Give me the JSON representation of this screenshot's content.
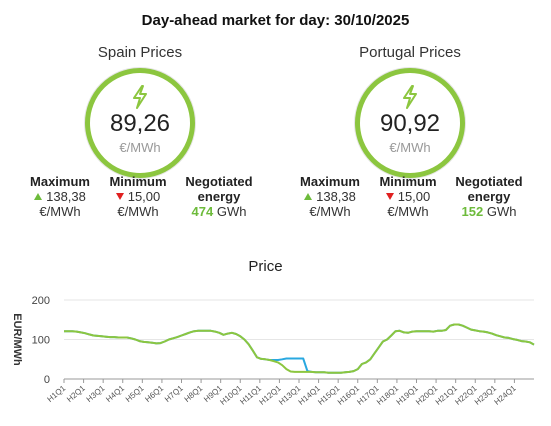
{
  "header": {
    "title": "Day-ahead market for day: 30/10/2025"
  },
  "panels": {
    "spain": {
      "name": "Spain Prices",
      "price": "89,26",
      "unit": "€/MWh",
      "max_label": "Maximum",
      "max_value": "138,38",
      "max_unit": "€/MWh",
      "min_label": "Minimum",
      "min_value": "15,00",
      "min_unit": "€/MWh",
      "energy_label_1": "Negotiated",
      "energy_label_2": "energy",
      "energy_value": "474",
      "energy_unit": "GWh"
    },
    "portugal": {
      "name": "Portugal Prices",
      "price": "90,92",
      "unit": "€/MWh",
      "max_label": "Maximum",
      "max_value": "138,38",
      "max_unit": "€/MWh",
      "min_label": "Minimum",
      "min_value": "15,00",
      "min_unit": "€/MWh",
      "energy_label_1": "Negotiated",
      "energy_label_2": "energy",
      "energy_value": "152",
      "energy_unit": "GWh"
    }
  },
  "colors": {
    "accent_green": "#8cc63f",
    "series_spain": "#8cc63f",
    "series_portugal": "#29a8e0",
    "down_red": "#e02020"
  },
  "icons": {
    "gauge_icon": "lightning-bolt-icon"
  },
  "chart_data": {
    "type": "line",
    "title": "Price",
    "ylabel": "EUR/MWh",
    "xlabel": "",
    "ylim": [
      0,
      200
    ],
    "yticks": [
      0,
      100,
      200
    ],
    "grid": true,
    "x_tick_labels": [
      "H1Q1",
      "H2Q1",
      "H3Q1",
      "H4Q1",
      "H5Q1",
      "H6Q1",
      "H7Q1",
      "H8Q1",
      "H9Q1",
      "H10Q1",
      "H11Q1",
      "H12Q1",
      "H13Q1",
      "H14Q1",
      "H15Q1",
      "H16Q1",
      "H17Q1",
      "H18Q1",
      "H19Q1",
      "H20Q1",
      "H21Q1",
      "H22Q1",
      "H23Q1",
      "H24Q1"
    ],
    "series": [
      {
        "values": [
          121,
          121,
          121,
          120,
          118,
          116,
          113,
          110,
          109,
          108,
          107,
          106,
          106,
          105,
          105,
          105,
          103,
          100,
          96,
          94,
          93,
          92,
          90,
          91,
          95,
          100,
          103,
          106,
          110,
          114,
          118,
          121,
          122,
          122,
          122,
          122,
          120,
          117,
          112,
          115,
          117,
          114,
          108,
          100,
          88,
          72,
          55,
          51,
          50,
          48,
          45,
          42,
          35,
          25,
          19,
          18,
          18,
          18,
          18,
          18,
          17,
          17,
          17,
          16,
          16,
          16,
          16,
          17,
          18,
          20,
          25,
          38,
          42,
          50,
          65,
          80,
          95,
          100,
          110,
          121,
          122,
          118,
          117,
          120,
          121,
          121,
          121,
          121,
          120,
          122,
          122,
          124,
          135,
          138,
          138,
          135,
          130,
          125,
          123,
          121,
          120,
          118,
          115,
          111,
          108,
          105,
          104,
          101,
          99,
          96,
          95,
          93,
          87
        ],
        "color": "#8cc63f"
      },
      {
        "values": [
          121,
          121,
          121,
          120,
          118,
          116,
          113,
          110,
          109,
          108,
          107,
          106,
          106,
          105,
          105,
          105,
          103,
          100,
          96,
          94,
          93,
          92,
          90,
          91,
          95,
          100,
          103,
          106,
          110,
          114,
          118,
          121,
          122,
          122,
          122,
          122,
          120,
          117,
          112,
          115,
          117,
          114,
          108,
          100,
          88,
          72,
          55,
          51,
          50,
          48,
          48,
          48,
          50,
          52,
          52,
          52,
          52,
          52,
          20,
          18,
          17,
          17,
          17,
          16,
          16,
          16,
          16,
          17,
          18,
          20,
          25,
          38,
          42,
          50,
          65,
          80,
          95,
          100,
          110,
          121,
          122,
          118,
          117,
          120,
          121,
          121,
          121,
          121,
          120,
          122,
          122,
          124,
          135,
          138,
          138,
          135,
          130,
          125,
          123,
          121,
          120,
          118,
          115,
          111,
          108,
          105,
          104,
          101,
          99,
          96,
          95,
          93,
          87
        ],
        "color": "#29a8e0"
      }
    ]
  }
}
